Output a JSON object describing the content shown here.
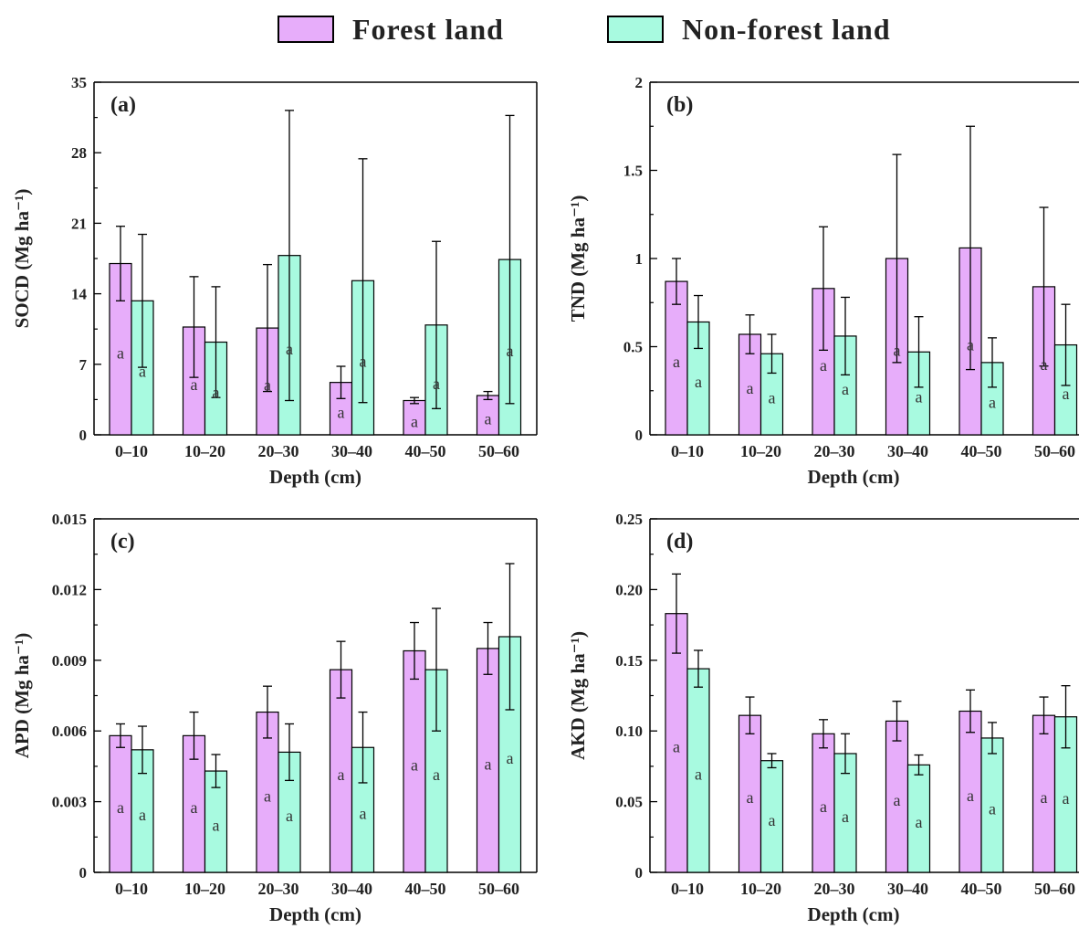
{
  "legend": {
    "forest_label": "Forest land",
    "nonforest_label": "Non-forest land"
  },
  "colors": {
    "forest": "#e7adfa",
    "nonforest": "#a8fae0",
    "axis": "#000000"
  },
  "chart_data": [
    {
      "type": "bar",
      "panel": "(a)",
      "categories": [
        "0–10",
        "10–20",
        "20–30",
        "30–40",
        "40–50",
        "50–60"
      ],
      "xlabel": "Depth (cm)",
      "ylabel": "SOCD (Mg ha⁻¹)",
      "ylim": [
        0,
        35
      ],
      "yticks": [
        0,
        7,
        14,
        21,
        28,
        35
      ],
      "ytick_labels": [
        "0",
        "7",
        "14",
        "21",
        "28",
        "35"
      ],
      "series": [
        {
          "name": "Forest land",
          "values": [
            17.0,
            10.7,
            10.6,
            5.2,
            3.4,
            3.9
          ],
          "err": [
            3.7,
            5.0,
            6.3,
            1.6,
            0.3,
            0.4
          ],
          "letters": [
            "a",
            "a",
            "a",
            "a",
            "a",
            "a"
          ]
        },
        {
          "name": "Non-forest land",
          "values": [
            13.3,
            9.2,
            17.8,
            15.3,
            10.9,
            17.4
          ],
          "err": [
            6.6,
            5.5,
            14.4,
            12.1,
            8.3,
            14.3
          ],
          "letters": [
            "a",
            "a",
            "a",
            "a",
            "a",
            "a"
          ]
        }
      ]
    },
    {
      "type": "bar",
      "panel": "(b)",
      "categories": [
        "0–10",
        "10–20",
        "20–30",
        "30–40",
        "40–50",
        "50–60"
      ],
      "xlabel": "Depth (cm)",
      "ylabel": "TND (Mg ha⁻¹)",
      "ylim": [
        0,
        2
      ],
      "yticks": [
        0,
        0.5,
        1,
        1.5,
        2
      ],
      "ytick_labels": [
        "0",
        "0.5",
        "1",
        "1.5",
        "2"
      ],
      "series": [
        {
          "name": "Forest land",
          "values": [
            0.87,
            0.57,
            0.83,
            1.0,
            1.06,
            0.84
          ],
          "err": [
            0.13,
            0.11,
            0.35,
            0.59,
            0.69,
            0.45
          ],
          "letters": [
            "a",
            "a",
            "a",
            "a",
            "a",
            "a"
          ]
        },
        {
          "name": "Non-forest land",
          "values": [
            0.64,
            0.46,
            0.56,
            0.47,
            0.41,
            0.51
          ],
          "err": [
            0.15,
            0.11,
            0.22,
            0.2,
            0.14,
            0.23
          ],
          "letters": [
            "a",
            "a",
            "a",
            "a",
            "a",
            "a"
          ]
        }
      ]
    },
    {
      "type": "bar",
      "panel": "(c)",
      "categories": [
        "0–10",
        "10–20",
        "20–30",
        "30–40",
        "40–50",
        "50–60"
      ],
      "xlabel": "Depth (cm)",
      "ylabel": "APD (Mg ha⁻¹)",
      "ylim": [
        0,
        0.015
      ],
      "yticks": [
        0,
        0.003,
        0.006,
        0.009,
        0.012,
        0.015
      ],
      "ytick_labels": [
        "0",
        "0.003",
        "0.006",
        "0.009",
        "0.012",
        "0.015"
      ],
      "series": [
        {
          "name": "Forest land",
          "values": [
            0.0058,
            0.0058,
            0.0068,
            0.0086,
            0.0094,
            0.0095
          ],
          "err": [
            0.0005,
            0.001,
            0.0011,
            0.0012,
            0.0012,
            0.0011
          ],
          "letters": [
            "a",
            "a",
            "a",
            "a",
            "a",
            "a"
          ]
        },
        {
          "name": "Non-forest land",
          "values": [
            0.0052,
            0.0043,
            0.0051,
            0.0053,
            0.0086,
            0.01
          ],
          "err": [
            0.001,
            0.0007,
            0.0012,
            0.0015,
            0.0026,
            0.0031
          ],
          "letters": [
            "a",
            "a",
            "a",
            "a",
            "a",
            "a"
          ]
        }
      ]
    },
    {
      "type": "bar",
      "panel": "(d)",
      "categories": [
        "0–10",
        "10–20",
        "20–30",
        "30–40",
        "40–50",
        "50–60"
      ],
      "xlabel": "Depth (cm)",
      "ylabel": "AKD (Mg ha⁻¹)",
      "ylim": [
        0,
        0.25
      ],
      "yticks": [
        0,
        0.05,
        0.1,
        0.15,
        0.2,
        0.25
      ],
      "ytick_labels": [
        "0",
        "0.05",
        "0.10",
        "0.15",
        "0.20",
        "0.25"
      ],
      "series": [
        {
          "name": "Forest land",
          "values": [
            0.183,
            0.111,
            0.098,
            0.107,
            0.114,
            0.111
          ],
          "err": [
            0.028,
            0.013,
            0.01,
            0.014,
            0.015,
            0.013
          ],
          "letters": [
            "a",
            "a",
            "a",
            "a",
            "a",
            "a"
          ]
        },
        {
          "name": "Non-forest land",
          "values": [
            0.144,
            0.079,
            0.084,
            0.076,
            0.095,
            0.11
          ],
          "err": [
            0.013,
            0.005,
            0.014,
            0.007,
            0.011,
            0.022
          ],
          "letters": [
            "a",
            "a",
            "a",
            "a",
            "a",
            "a"
          ]
        }
      ]
    }
  ]
}
